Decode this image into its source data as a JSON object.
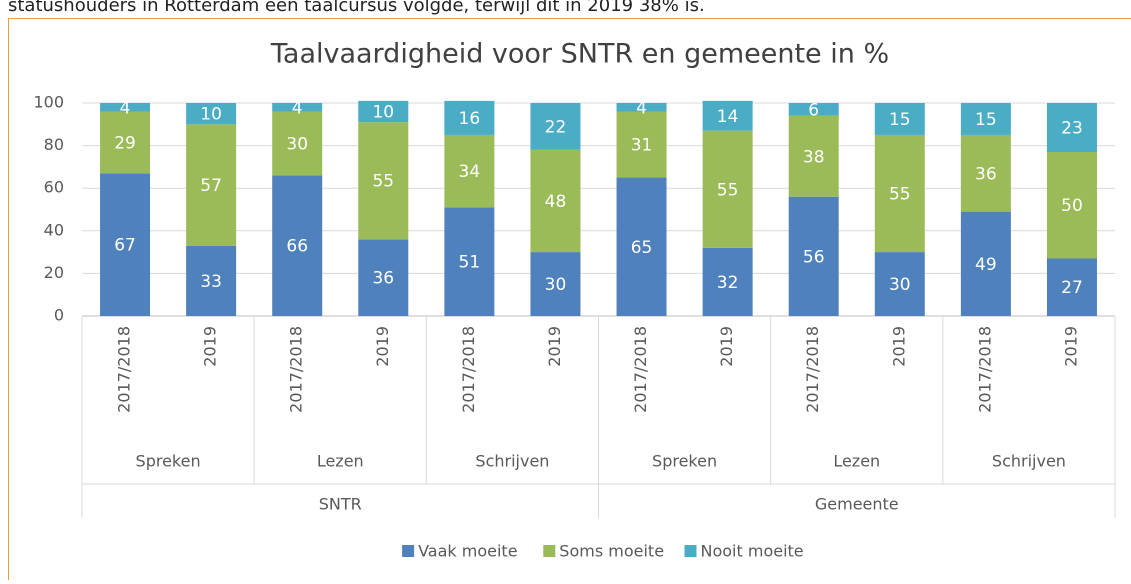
{
  "intro_text": "statushouders in Rotterdam een taalcursus volgde, terwijl dit in 2019 38% is.",
  "chart_data": {
    "type": "stacked_bar",
    "title": "Taalvaardigheid voor SNTR en gemeente in %",
    "categories": [
      "2017/2018",
      "2019",
      "2017/2018",
      "2019",
      "2017/2018",
      "2019",
      "2017/2018",
      "2019",
      "2017/2018",
      "2019",
      "2017/2018",
      "2019"
    ],
    "groups": [
      "Spreken",
      "Lezen",
      "Schrijven",
      "Spreken",
      "Lezen",
      "Schrijven"
    ],
    "supergroups": [
      "SNTR",
      "Gemeente"
    ],
    "series": [
      {
        "name": "Vaak moeite",
        "color": "#4f81bd",
        "values": [
          67,
          33,
          66,
          36,
          51,
          30,
          65,
          32,
          56,
          30,
          49,
          27
        ]
      },
      {
        "name": "Soms moeite",
        "color": "#9bbb59",
        "values": [
          29,
          57,
          30,
          55,
          34,
          48,
          31,
          55,
          38,
          55,
          36,
          50
        ]
      },
      {
        "name": "Nooit moeite",
        "color": "#4bacc6",
        "values": [
          4,
          10,
          4,
          10,
          16,
          22,
          4,
          14,
          6,
          15,
          15,
          23
        ]
      }
    ],
    "ylim": [
      0,
      100
    ],
    "yticks": [
      0,
      20,
      40,
      60,
      80,
      100
    ],
    "grid": true,
    "legend": "bottom"
  }
}
